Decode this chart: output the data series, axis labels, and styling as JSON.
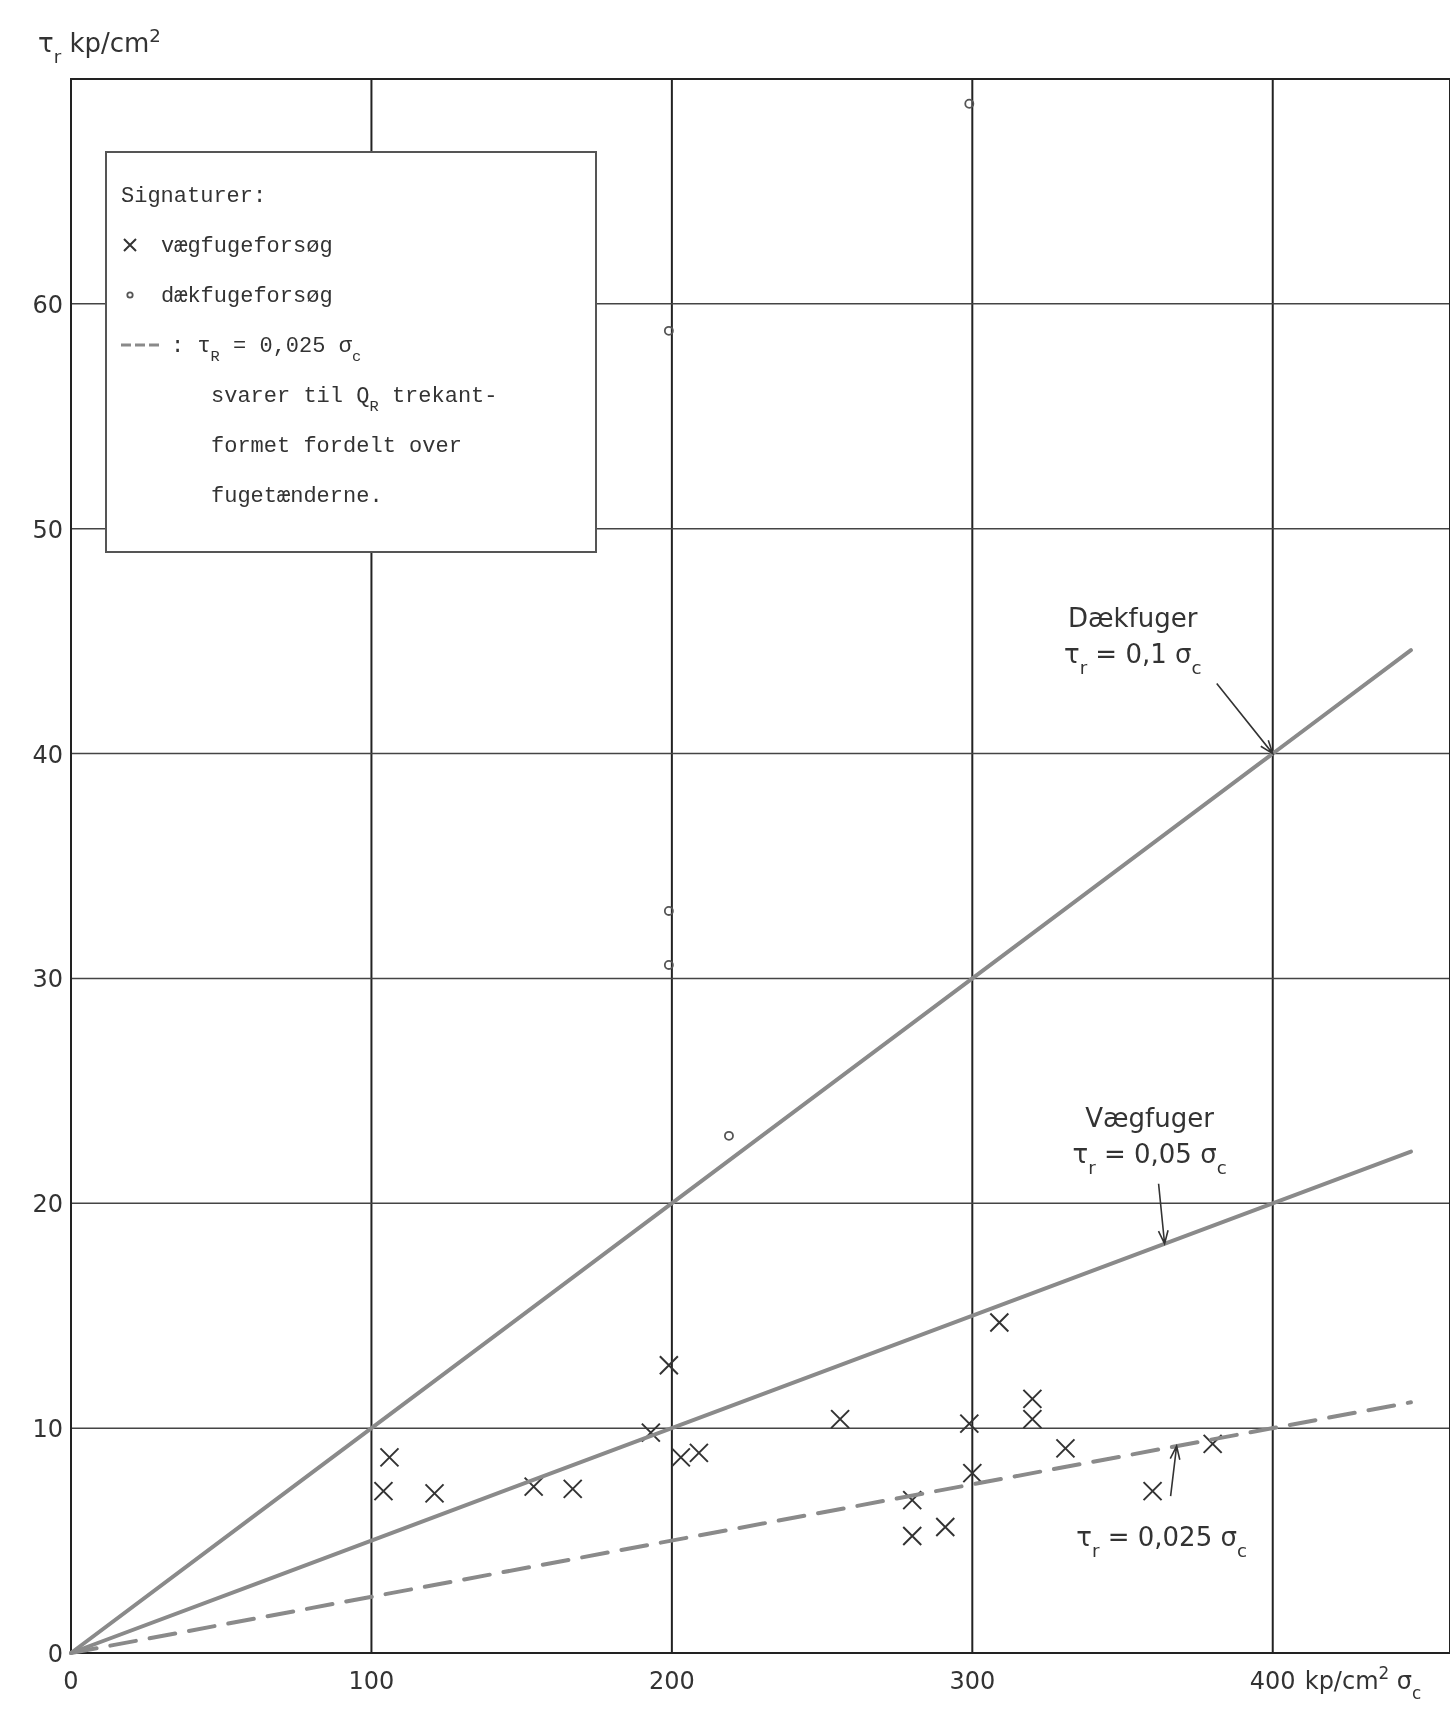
{
  "chart_data": {
    "type": "scatter",
    "ylabel": "τ$_{r}$   kp/cm$^{2}$",
    "xlabel": "kp/cm$^{2}$ σ$_{c}$",
    "legend_title": "Signaturer:",
    "xlim": [
      0,
      459
    ],
    "ylim": [
      0,
      70
    ],
    "xticks": [
      0,
      100,
      200,
      300,
      400
    ],
    "yticks": [
      0,
      10,
      20,
      30,
      40,
      50,
      60
    ],
    "grid": true,
    "legend": "top left",
    "series": [
      {
        "name": "vægfugeforsøg",
        "marker": "cross",
        "color": "#333333",
        "x": [
          104,
          106,
          121,
          154,
          167,
          193,
          199,
          203,
          209,
          256,
          280,
          280,
          291,
          299,
          300,
          309,
          320,
          320,
          331,
          360,
          380
        ],
        "values": [
          7.2,
          8.7,
          7.1,
          7.4,
          7.3,
          9.8,
          12.8,
          8.7,
          8.9,
          10.4,
          6.8,
          5.2,
          5.6,
          10.2,
          8.0,
          14.7,
          11.3,
          10.4,
          9.1,
          7.2,
          9.3
        ]
      },
      {
        "name": "dækfugeforsøg",
        "marker": "circle",
        "color": "#555555",
        "x": [
          299,
          199,
          199,
          199,
          219
        ],
        "values": [
          68.9,
          58.8,
          33.0,
          30.6,
          23.0
        ]
      },
      {
        "name": ": τ$_{R}$ = 0,025 σ$_{c}$",
        "type": "line",
        "line_style": "dashed",
        "color": "#8a8a8a",
        "x": [
          0,
          446
        ],
        "values": [
          0,
          11.15
        ]
      },
      {
        "type": "line",
        "line_style": "solid",
        "color": "#8a8a8a",
        "x": [
          0,
          446
        ],
        "values": [
          0,
          44.6
        ]
      },
      {
        "type": "line",
        "line_style": "solid",
        "color": "#8a8a8a",
        "x": [
          0,
          446
        ],
        "values": [
          0,
          22.3
        ]
      }
    ],
    "annotations": [
      "svarer til Q$_{R}$ trekant-\nformet fordelt over\nfugetænderne.",
      {
        "text": "Dækfuger\nτ$_{r}$ = 0,1 σ$_{c}$",
        "x": 400,
        "y": 40
      },
      {
        "text": "Vægfuger\nτ$_{r}$ = 0,05 σ$_{c}$",
        "x": 364,
        "y": 18.2
      },
      {
        "text": "τ$_{r}$ = 0,025 σ$_{c}$",
        "x": 368,
        "y": 9.2
      }
    ]
  }
}
